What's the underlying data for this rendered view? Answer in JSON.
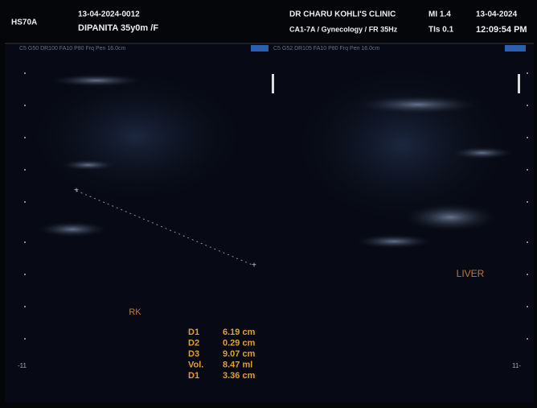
{
  "header": {
    "device": "HS70A",
    "exam_id": "13-04-2024-0012",
    "patient": "DIPANITA 35y0m /F",
    "clinic": "DR CHARU KOHLI'S CLINIC",
    "probe": "CA1-7A / Gynecology / FR 35Hz",
    "mi": "MI 1.4",
    "tis": "TIs 0.1",
    "date": "13-04-2024",
    "time": "12:09:54 PM"
  },
  "panels": [
    {
      "params": "C5 G50 DR100 FA10 P80 Frq Pen 16.0cm",
      "label": "RK"
    },
    {
      "params": "C5 G52 DR105 FA10 P80 Frq Pen 16.0cm",
      "label": "LIVER"
    }
  ],
  "depth_marks": {
    "left": "-11",
    "right": "11-"
  },
  "measurements": [
    {
      "label": "D1",
      "value": "6.19 cm"
    },
    {
      "label": "D2",
      "value": "0.29 cm"
    },
    {
      "label": "D3",
      "value": "9.07 cm"
    },
    {
      "label": "Vol.",
      "value": "8.47 ml"
    },
    {
      "label": "D1",
      "value": "3.36 cm"
    }
  ]
}
